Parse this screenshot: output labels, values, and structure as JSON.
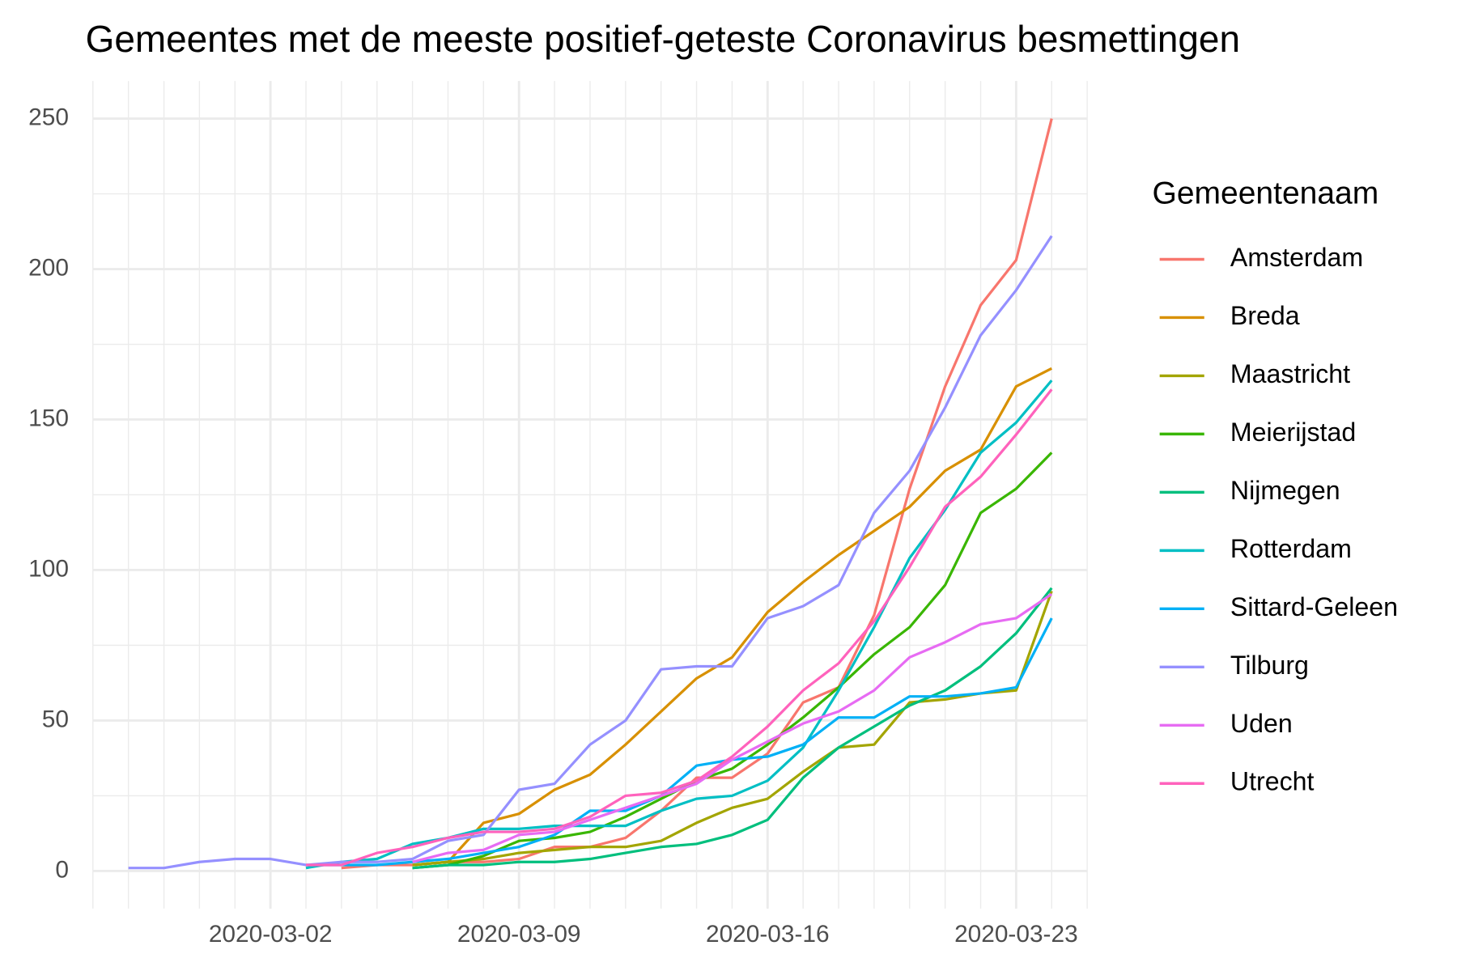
{
  "chart_data": {
    "type": "line",
    "title": "Gemeentes met de meeste positief-geteste Coronavirus besmettingen",
    "x": [
      "2020-02-27",
      "2020-02-28",
      "2020-02-29",
      "2020-03-01",
      "2020-03-02",
      "2020-03-03",
      "2020-03-04",
      "2020-03-05",
      "2020-03-06",
      "2020-03-07",
      "2020-03-08",
      "2020-03-09",
      "2020-03-10",
      "2020-03-11",
      "2020-03-12",
      "2020-03-13",
      "2020-03-14",
      "2020-03-15",
      "2020-03-16",
      "2020-03-17",
      "2020-03-18",
      "2020-03-19",
      "2020-03-20",
      "2020-03-21",
      "2020-03-22",
      "2020-03-23",
      "2020-03-24"
    ],
    "xlim": [
      "2020-02-26",
      "2020-03-25"
    ],
    "xticks": [
      "2020-03-02",
      "2020-03-09",
      "2020-03-16",
      "2020-03-23"
    ],
    "ylim": [
      -12.5,
      262.5
    ],
    "yticks": [
      0,
      50,
      100,
      150,
      200,
      250
    ],
    "grid": true,
    "legend_title": "Gemeentenaam",
    "legend_position": "right",
    "series": [
      {
        "name": "Amsterdam",
        "color": "#F8766D",
        "values": [
          null,
          null,
          null,
          null,
          null,
          null,
          1,
          2,
          2,
          3,
          3,
          4,
          8,
          8,
          11,
          20,
          31,
          31,
          39,
          56,
          61,
          85,
          127,
          161,
          188,
          203,
          250
        ]
      },
      {
        "name": "Breda",
        "color": "#D89000",
        "values": [
          null,
          null,
          null,
          null,
          null,
          null,
          null,
          null,
          2,
          3,
          16,
          19,
          27,
          32,
          42,
          53,
          64,
          71,
          86,
          96,
          105,
          113,
          121,
          133,
          140,
          161,
          167
        ]
      },
      {
        "name": "Maastricht",
        "color": "#A3A500",
        "values": [
          null,
          null,
          null,
          null,
          null,
          null,
          null,
          null,
          2,
          3,
          4,
          6,
          7,
          8,
          8,
          10,
          16,
          21,
          24,
          33,
          41,
          42,
          56,
          57,
          59,
          60,
          93
        ]
      },
      {
        "name": "Meierijstad",
        "color": "#39B600",
        "values": [
          null,
          null,
          null,
          null,
          null,
          null,
          null,
          null,
          1,
          2,
          5,
          10,
          11,
          13,
          18,
          24,
          30,
          34,
          42,
          51,
          61,
          72,
          81,
          95,
          119,
          127,
          139
        ]
      },
      {
        "name": "Nijmegen",
        "color": "#00BF7D",
        "values": [
          null,
          null,
          null,
          null,
          null,
          null,
          null,
          null,
          1,
          2,
          2,
          3,
          3,
          4,
          6,
          8,
          9,
          12,
          17,
          31,
          41,
          48,
          55,
          60,
          68,
          79,
          94
        ]
      },
      {
        "name": "Rotterdam",
        "color": "#00BFC4",
        "values": [
          null,
          null,
          null,
          null,
          null,
          1,
          3,
          4,
          9,
          11,
          14,
          14,
          15,
          15,
          15,
          20,
          24,
          25,
          30,
          41,
          60,
          81,
          104,
          120,
          139,
          149,
          163
        ]
      },
      {
        "name": "Sittard-Geleen",
        "color": "#00B0F6",
        "values": [
          null,
          null,
          null,
          null,
          null,
          2,
          2,
          2,
          3,
          4,
          6,
          8,
          12,
          20,
          20,
          25,
          35,
          37,
          38,
          42,
          51,
          51,
          58,
          58,
          59,
          61,
          84
        ]
      },
      {
        "name": "Tilburg",
        "color": "#9590FF",
        "values": [
          1,
          1,
          3,
          4,
          4,
          2,
          3,
          3,
          4,
          10,
          12,
          27,
          29,
          42,
          50,
          67,
          68,
          68,
          84,
          88,
          95,
          119,
          133,
          154,
          178,
          193,
          211
        ]
      },
      {
        "name": "Uden",
        "color": "#E76BF3",
        "values": [
          null,
          null,
          null,
          null,
          null,
          null,
          null,
          null,
          3,
          6,
          7,
          12,
          13,
          17,
          21,
          25,
          29,
          37,
          43,
          49,
          53,
          60,
          71,
          76,
          82,
          84,
          92
        ]
      },
      {
        "name": "Utrecht",
        "color": "#FF62BC",
        "values": [
          null,
          null,
          null,
          null,
          null,
          2,
          2,
          6,
          8,
          11,
          13,
          13,
          14,
          18,
          25,
          26,
          30,
          38,
          48,
          60,
          69,
          83,
          101,
          121,
          131,
          145,
          160
        ]
      }
    ]
  }
}
